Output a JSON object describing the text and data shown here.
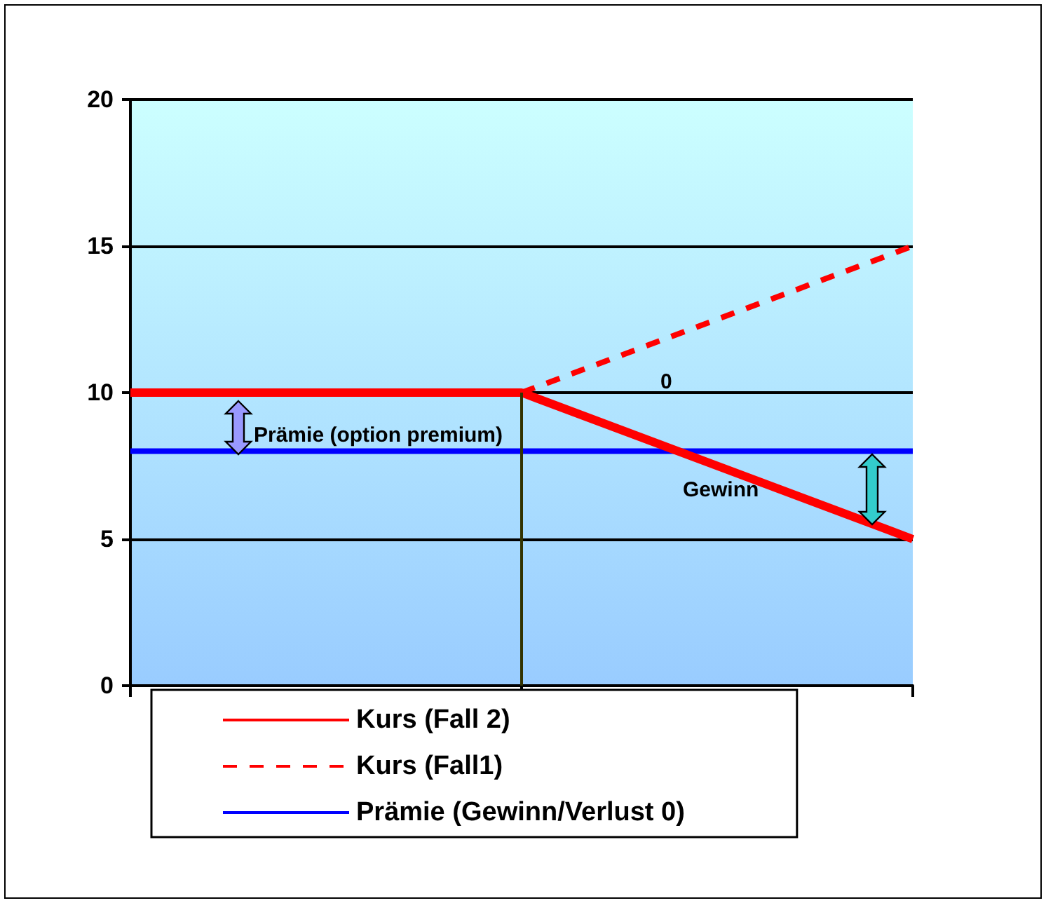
{
  "chart_data": {
    "type": "line",
    "categories": [
      null,
      null,
      null
    ],
    "series": [
      {
        "name": "Kurs (Fall 2)",
        "color": "#ff0000",
        "values": [
          10,
          10,
          5
        ],
        "line_style": "solid"
      },
      {
        "name": "Kurs (Fall1)",
        "color": "#ff0000",
        "values": [
          null,
          10,
          15
        ],
        "line_style": "dashed"
      },
      {
        "name": "Prämie (Gewinn/Verlust 0)",
        "color": "#0000ff",
        "values": [
          8,
          8,
          8
        ],
        "line_style": "solid"
      }
    ],
    "ylim": [
      0,
      20
    ],
    "yticks": [
      0,
      5,
      10,
      15,
      20
    ],
    "grid": "y",
    "legend": "bottom",
    "marker": "none",
    "annotations": [
      "Prämie (option premium)",
      "0",
      "Gewinn"
    ]
  }
}
